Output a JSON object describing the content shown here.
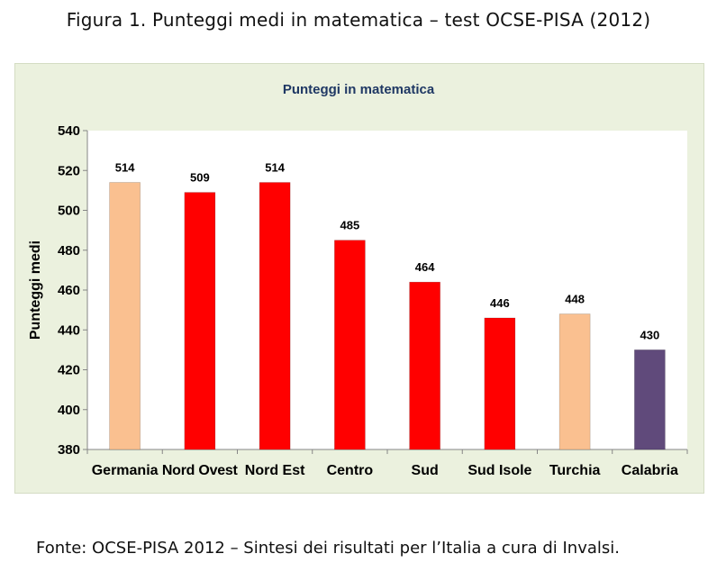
{
  "figure_title": "Figura 1. Punteggi medi in matematica – test OCSE-PISA (2012)",
  "source_note": "Fonte: OCSE-PISA 2012 – Sintesi dei risultati per l’Italia a cura di Invalsi.",
  "chart_data": {
    "type": "bar",
    "title": "Punteggi in matematica",
    "xlabel": "",
    "ylabel": "Punteggi medi",
    "ylim": [
      380,
      540
    ],
    "yticks": [
      380,
      400,
      420,
      440,
      460,
      480,
      500,
      520,
      540
    ],
    "grid": false,
    "categories": [
      "Germania",
      "Nord Ovest",
      "Nord Est",
      "Centro",
      "Sud",
      "Sud Isole",
      "Turchia",
      "Calabria"
    ],
    "values": [
      514,
      509,
      514,
      485,
      464,
      446,
      448,
      430
    ],
    "bar_colors": [
      "#fac090",
      "#ff0000",
      "#ff0000",
      "#ff0000",
      "#ff0000",
      "#ff0000",
      "#fac090",
      "#604a7b"
    ],
    "colors": {
      "panel_background": "#ebf1de",
      "plot_background": "#ffffff",
      "title": "#1f3864",
      "axis": "#868686"
    }
  }
}
